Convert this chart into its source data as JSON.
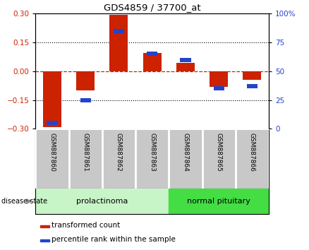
{
  "title": "GDS4859 / 37700_at",
  "samples": [
    "GSM887860",
    "GSM887861",
    "GSM887862",
    "GSM887863",
    "GSM887864",
    "GSM887865",
    "GSM887866"
  ],
  "red_values": [
    -0.29,
    -0.1,
    0.295,
    0.095,
    0.045,
    -0.08,
    -0.045
  ],
  "blue_pct": [
    5,
    25,
    85,
    65,
    60,
    35,
    37
  ],
  "ylim_left": [
    -0.3,
    0.3
  ],
  "ylim_right": [
    0,
    100
  ],
  "yticks_left": [
    -0.3,
    -0.15,
    0,
    0.15,
    0.3
  ],
  "yticks_right": [
    0,
    25,
    50,
    75,
    100
  ],
  "groups": [
    {
      "label": "prolactinoma",
      "indices": [
        0,
        1,
        2,
        3
      ],
      "color": "#c8f5c8"
    },
    {
      "label": "normal pituitary",
      "indices": [
        4,
        5,
        6
      ],
      "color": "#44dd44"
    }
  ],
  "disease_state_label": "disease state",
  "legend_red": "transformed count",
  "legend_blue": "percentile rank within the sample",
  "bar_color": "#cc2200",
  "dot_color": "#2244cc",
  "label_area_color": "#c8c8c8",
  "bar_width": 0.55
}
